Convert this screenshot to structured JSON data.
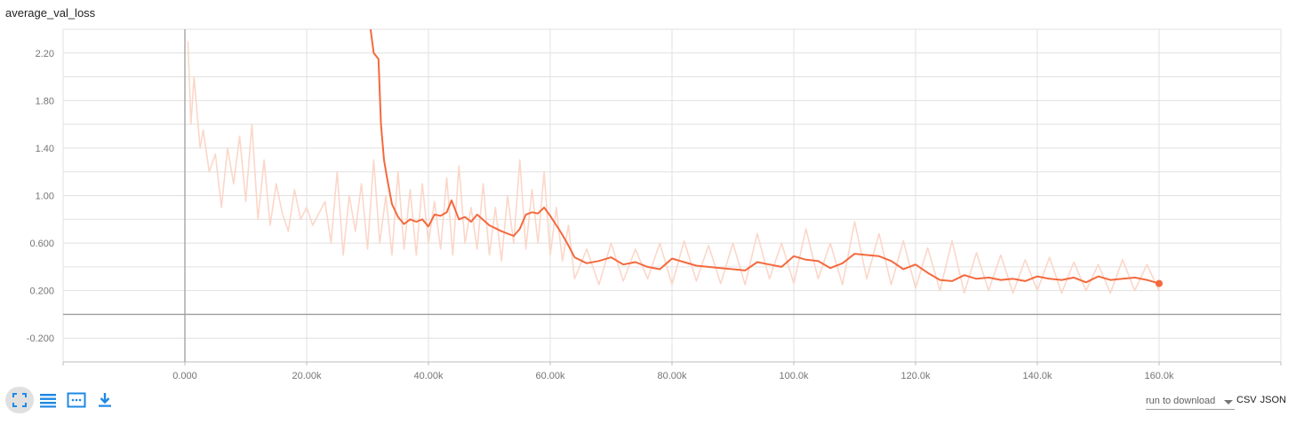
{
  "title": "average_val_loss",
  "colors": {
    "smoothed": "#f4693d",
    "raw": "#fbd7c9",
    "grid": "#e0e0e0",
    "zero": "#9e9e9e",
    "accent": "#1e88e5"
  },
  "chart_data": {
    "type": "line",
    "title": "average_val_loss",
    "xlabel": "",
    "ylabel": "",
    "xlim": [
      -20000,
      180000
    ],
    "ylim": [
      -0.4,
      2.4
    ],
    "x_ticks": [
      "0.000",
      "20.00k",
      "40.00k",
      "60.00k",
      "80.00k",
      "100.0k",
      "120.0k",
      "140.0k",
      "160.0k"
    ],
    "x_tick_values": [
      0,
      20000,
      40000,
      60000,
      80000,
      100000,
      120000,
      140000,
      160000
    ],
    "y_ticks": [
      "-0.200",
      "0.200",
      "0.600",
      "1.00",
      "1.40",
      "1.80",
      "2.20"
    ],
    "y_tick_values": [
      -0.2,
      0.2,
      0.6,
      1.0,
      1.4,
      1.8,
      2.2
    ],
    "grid": true,
    "series": [
      {
        "key": "smoothed",
        "x": [
          30500,
          31000,
          31800,
          32200,
          32700,
          33200,
          34000,
          35000,
          36000,
          37000,
          38000,
          39000,
          40000,
          41000,
          42000,
          43000,
          43800,
          45000,
          46000,
          47000,
          48000,
          50000,
          52000,
          54000,
          55000,
          56000,
          57000,
          58000,
          59000,
          60000,
          61000,
          62000,
          63000,
          64000,
          66000,
          68000,
          70000,
          72000,
          74000,
          76000,
          78000,
          80000,
          82000,
          84000,
          86000,
          88000,
          90000,
          92000,
          94000,
          96000,
          98000,
          100000,
          102000,
          104000,
          106000,
          108000,
          110000,
          112000,
          114000,
          116000,
          118000,
          120000,
          122000,
          124000,
          126000,
          128000,
          130000,
          132000,
          134000,
          136000,
          138000,
          140000,
          142000,
          144000,
          146000,
          148000,
          150000,
          152000,
          154000,
          156000,
          158000,
          160000
        ],
        "y": [
          2.4,
          2.2,
          2.15,
          1.6,
          1.3,
          1.15,
          0.93,
          0.82,
          0.76,
          0.8,
          0.78,
          0.8,
          0.74,
          0.84,
          0.83,
          0.86,
          0.96,
          0.8,
          0.82,
          0.78,
          0.84,
          0.75,
          0.7,
          0.66,
          0.72,
          0.84,
          0.86,
          0.85,
          0.9,
          0.83,
          0.75,
          0.67,
          0.58,
          0.48,
          0.43,
          0.45,
          0.48,
          0.42,
          0.44,
          0.4,
          0.38,
          0.47,
          0.44,
          0.41,
          0.4,
          0.39,
          0.38,
          0.37,
          0.44,
          0.42,
          0.4,
          0.49,
          0.46,
          0.45,
          0.39,
          0.43,
          0.51,
          0.5,
          0.49,
          0.45,
          0.38,
          0.42,
          0.35,
          0.29,
          0.28,
          0.33,
          0.3,
          0.31,
          0.29,
          0.3,
          0.28,
          0.32,
          0.3,
          0.29,
          0.31,
          0.27,
          0.32,
          0.29,
          0.3,
          0.31,
          0.29,
          0.26
        ]
      },
      {
        "key": "raw",
        "x": [
          500,
          1000,
          1500,
          2000,
          2500,
          3000,
          4000,
          5000,
          6000,
          7000,
          8000,
          9000,
          10000,
          11000,
          12000,
          13000,
          14000,
          15000,
          16000,
          17000,
          18000,
          19000,
          20000,
          21000,
          22000,
          23000,
          24000,
          25000,
          26000,
          27000,
          28000,
          29000,
          30000,
          31000,
          32000,
          33000,
          34000,
          35000,
          36000,
          37000,
          38000,
          39000,
          40000,
          41000,
          42000,
          43000,
          44000,
          45000,
          46000,
          47000,
          48000,
          49000,
          50000,
          51000,
          52000,
          53000,
          54000,
          55000,
          56000,
          57000,
          58000,
          59000,
          60000,
          61000,
          62000,
          63000,
          64000,
          66000,
          68000,
          70000,
          72000,
          74000,
          76000,
          78000,
          80000,
          82000,
          84000,
          86000,
          88000,
          90000,
          92000,
          94000,
          96000,
          98000,
          100000,
          102000,
          104000,
          106000,
          108000,
          110000,
          112000,
          114000,
          116000,
          118000,
          120000,
          122000,
          124000,
          126000,
          128000,
          130000,
          132000,
          134000,
          136000,
          138000,
          140000,
          142000,
          144000,
          146000,
          148000,
          150000,
          152000,
          154000,
          156000,
          158000,
          160000
        ],
        "y": [
          2.3,
          1.6,
          2.0,
          1.7,
          1.4,
          1.55,
          1.2,
          1.35,
          0.9,
          1.4,
          1.1,
          1.5,
          0.95,
          1.6,
          0.8,
          1.3,
          0.75,
          1.1,
          0.85,
          0.7,
          1.05,
          0.8,
          0.9,
          0.75,
          0.85,
          0.95,
          0.6,
          1.2,
          0.5,
          1.0,
          0.7,
          1.1,
          0.55,
          1.3,
          0.6,
          1.0,
          0.5,
          1.2,
          0.55,
          1.05,
          0.5,
          1.1,
          0.6,
          0.95,
          0.55,
          1.15,
          0.5,
          1.25,
          0.6,
          0.9,
          0.55,
          1.1,
          0.5,
          0.9,
          0.45,
          1.0,
          0.6,
          1.3,
          0.55,
          1.05,
          0.6,
          1.2,
          0.5,
          0.9,
          0.45,
          0.75,
          0.3,
          0.55,
          0.25,
          0.6,
          0.28,
          0.55,
          0.3,
          0.6,
          0.25,
          0.62,
          0.28,
          0.58,
          0.26,
          0.6,
          0.25,
          0.68,
          0.3,
          0.6,
          0.26,
          0.72,
          0.3,
          0.6,
          0.25,
          0.78,
          0.3,
          0.68,
          0.25,
          0.62,
          0.22,
          0.56,
          0.2,
          0.62,
          0.18,
          0.52,
          0.2,
          0.5,
          0.18,
          0.46,
          0.2,
          0.48,
          0.18,
          0.44,
          0.2,
          0.42,
          0.18,
          0.46,
          0.2,
          0.42,
          0.2
        ]
      }
    ]
  },
  "toolbar": {
    "icons": [
      "fit-domain-icon",
      "log-scale-icon",
      "selection-icon",
      "download-icon"
    ]
  },
  "download": {
    "select_label": "run to download",
    "csv_label": "CSV",
    "json_label": "JSON"
  }
}
